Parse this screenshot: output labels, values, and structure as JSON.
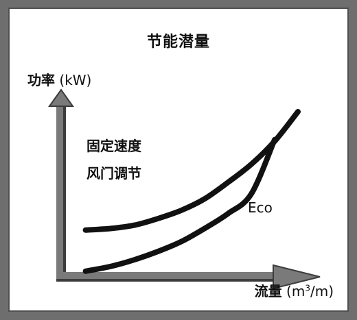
{
  "chart_data": {
    "type": "line",
    "title": "节能潜量",
    "ylabel_text": "功率",
    "ylabel_unit": "(kW)",
    "xlabel_text": "流量",
    "xlabel_unit_prefix": "(m",
    "xlabel_unit_sup": "3",
    "xlabel_unit_suffix": "/m)",
    "xlim": [
      0,
      1
    ],
    "ylim": [
      0,
      1
    ],
    "grid": false,
    "series": [
      {
        "name_line1": "固定速度",
        "name_line2": "风门调节",
        "x": [
          0.09,
          0.2,
          0.3,
          0.4,
          0.5,
          0.6,
          0.7,
          0.8,
          0.9,
          1.0
        ],
        "y": [
          0.28,
          0.29,
          0.31,
          0.35,
          0.4,
          0.47,
          0.57,
          0.68,
          0.82,
          1.0
        ]
      },
      {
        "name": "Eco",
        "x": [
          0.09,
          0.2,
          0.3,
          0.4,
          0.5,
          0.6,
          0.7,
          0.8,
          0.9
        ],
        "y": [
          0.03,
          0.06,
          0.1,
          0.15,
          0.21,
          0.29,
          0.38,
          0.5,
          0.83
        ]
      }
    ],
    "colors": {
      "curve": "#111111",
      "axis_fill": "#7a7a7a",
      "axis_dark": "#3c3c3c"
    }
  }
}
